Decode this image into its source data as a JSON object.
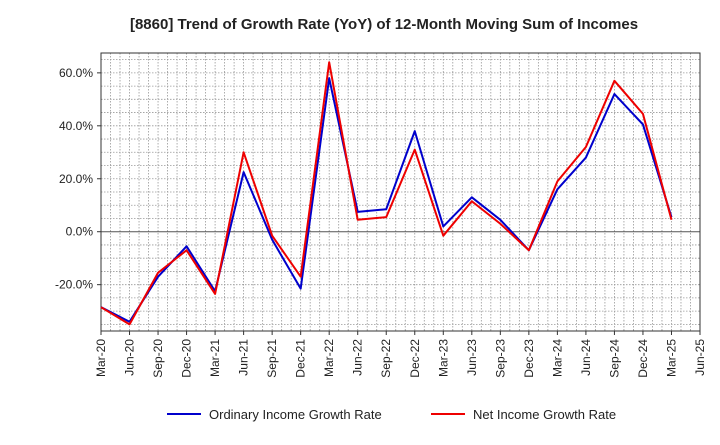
{
  "chart_data": {
    "type": "line",
    "title": "[8860]  Trend of Growth Rate (YoY) of 12-Month Moving Sum of Incomes",
    "x_ticks": [
      "Mar-20",
      "Jun-20",
      "Sep-20",
      "Dec-20",
      "Mar-21",
      "Jun-21",
      "Sep-21",
      "Dec-21",
      "Mar-22",
      "Jun-22",
      "Sep-22",
      "Dec-22",
      "Mar-23",
      "Jun-23",
      "Sep-23",
      "Dec-23",
      "Mar-24",
      "Jun-24",
      "Sep-24",
      "Dec-24",
      "Mar-25",
      "Jun-25"
    ],
    "y_ticks": [
      60,
      40,
      20,
      0,
      -20
    ],
    "y_tick_labels": [
      "60.0%",
      "40.0%",
      "20.0%",
      "0.0%",
      "-20.0%"
    ],
    "ylim": [
      -37.5,
      67.5
    ],
    "grid": true,
    "legend_position": "bottom",
    "series": [
      {
        "name": "Ordinary Income Growth Rate",
        "color": "#0000cc",
        "values": [
          -28.5,
          -34,
          -17,
          -5.5,
          -22.5,
          22.5,
          -3,
          -21.5,
          58,
          7.5,
          8.5,
          38,
          2,
          13,
          4.5,
          -7,
          16,
          28,
          52,
          40.5,
          5.5
        ]
      },
      {
        "name": "Net Income Growth Rate",
        "color": "#ee0000",
        "values": [
          -28.5,
          -35,
          -15.5,
          -7,
          -23.5,
          30,
          -1.5,
          -17,
          64,
          4.5,
          5.5,
          31,
          -1.5,
          11.5,
          3,
          -7,
          19,
          32,
          57,
          44.5,
          4.5
        ]
      }
    ]
  }
}
